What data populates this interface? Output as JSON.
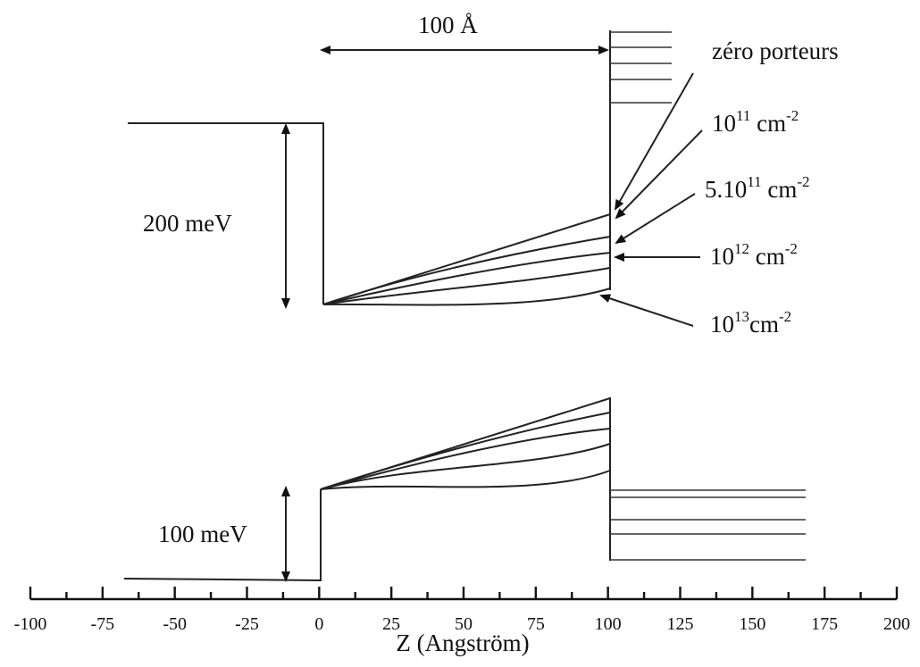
{
  "well_width_label": "100 Å",
  "conduction_offset_label": "200 meV",
  "valence_offset_label": "100 meV",
  "curve_labels": [
    {
      "id": "zero",
      "base": "zéro porteurs",
      "sup": "",
      "unit": ""
    },
    {
      "id": "d1e11",
      "base": "10",
      "sup": "11",
      "unit": " cm",
      "unit_sup": "-2"
    },
    {
      "id": "d5e11",
      "base": "5.10",
      "sup": "11",
      "unit": " cm",
      "unit_sup": "-2"
    },
    {
      "id": "d1e12",
      "base": "10",
      "sup": "12",
      "unit": " cm",
      "unit_sup": "-2"
    },
    {
      "id": "d1e13",
      "base": "10",
      "sup": "13",
      "unit": "cm",
      "unit_sup": "-2"
    }
  ],
  "axis": {
    "title": "Z (Angström)",
    "ticks": [
      "-100",
      "-75",
      "-50",
      "-25",
      "0",
      "25",
      "50",
      "75",
      "100",
      "125",
      "150",
      "175",
      "200"
    ],
    "min": -100,
    "max": 200
  },
  "colors": {
    "line": "#222222",
    "background": "#ffffff"
  }
}
